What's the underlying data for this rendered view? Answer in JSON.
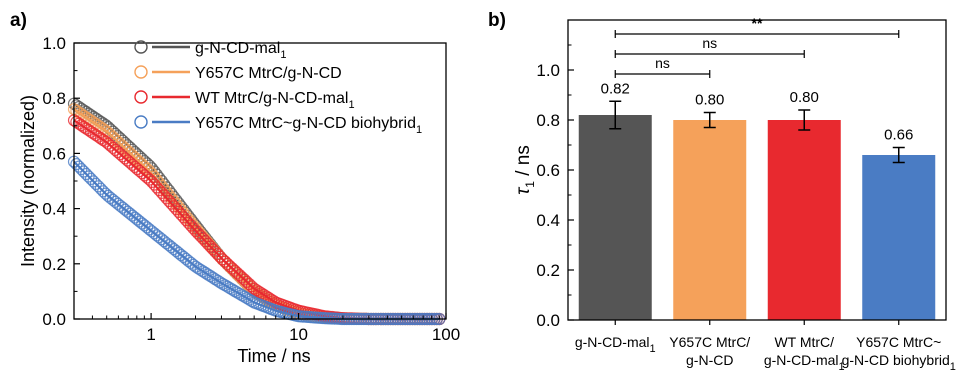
{
  "panels": [
    {
      "letter": "a)"
    },
    {
      "letter": "b)"
    }
  ],
  "chart_data": [
    {
      "type": "scatter",
      "panel": "a)",
      "xlabel": "Time / ns",
      "ylabel": "Intensity (normalized)",
      "xscale": "log",
      "xlim": [
        0.3,
        100
      ],
      "ylim": [
        0.0,
        1.0
      ],
      "xticks": [
        {
          "value": 1,
          "label": "1"
        },
        {
          "value": 10,
          "label": "10"
        },
        {
          "value": 100,
          "label": "100"
        }
      ],
      "yticks": [
        "0.0",
        "0.2",
        "0.4",
        "0.6",
        "0.8",
        "1.0"
      ],
      "legend_position": "top-right",
      "fit_lines": true,
      "series": [
        {
          "name": "g-N-CD-mal",
          "name_sub": "1",
          "color": "#555555",
          "x": [
            0.3,
            0.5,
            1,
            2,
            3,
            5,
            7,
            10,
            15,
            20,
            30,
            50,
            90
          ],
          "y": [
            0.78,
            0.7,
            0.55,
            0.34,
            0.22,
            0.1,
            0.05,
            0.02,
            0.005,
            0.002,
            0.0,
            0.0,
            0.0
          ]
        },
        {
          "name": "Y657C MtrC/g-N-CD",
          "name_sub": "",
          "color": "#f5a15a",
          "x": [
            0.3,
            0.5,
            1,
            2,
            3,
            5,
            7,
            10,
            15,
            20,
            30,
            50,
            90
          ],
          "y": [
            0.76,
            0.68,
            0.53,
            0.33,
            0.22,
            0.1,
            0.05,
            0.02,
            0.005,
            0.002,
            0.0,
            0.0,
            0.0
          ]
        },
        {
          "name": "WT MtrC/g-N-CD-mal",
          "name_sub": "1",
          "color": "#e8292f",
          "x": [
            0.3,
            0.5,
            1,
            2,
            3,
            5,
            7,
            10,
            15,
            20,
            30,
            50,
            90
          ],
          "y": [
            0.72,
            0.64,
            0.5,
            0.32,
            0.22,
            0.11,
            0.06,
            0.03,
            0.01,
            0.003,
            0.0,
            0.0,
            0.0
          ]
        },
        {
          "name": "Y657C MtrC~g-N-CD biohybrid",
          "name_sub": "1",
          "color": "#4a7cc4",
          "x": [
            0.3,
            0.5,
            1,
            2,
            3,
            5,
            7,
            10,
            15,
            20,
            30,
            50,
            90
          ],
          "y": [
            0.57,
            0.45,
            0.32,
            0.19,
            0.13,
            0.06,
            0.03,
            0.01,
            0.003,
            0.0,
            0.0,
            0.0,
            0.0
          ]
        }
      ]
    },
    {
      "type": "bar",
      "panel": "b)",
      "ylabel_main": "τ",
      "ylabel_sub": "1",
      "ylabel_unit": " / ns",
      "ylim": [
        0.0,
        1.2
      ],
      "yticks": [
        "0.0",
        "0.2",
        "0.4",
        "0.6",
        "0.8",
        "1.0"
      ],
      "categories": [
        {
          "lines": [
            "g-N-CD-mal",
            ""
          ],
          "subs": [
            "1",
            ""
          ]
        },
        {
          "lines": [
            "Y657C MtrC/",
            "g-N-CD"
          ],
          "subs": [
            "",
            ""
          ]
        },
        {
          "lines": [
            "WT MtrC/",
            "g-N-CD-mal"
          ],
          "subs": [
            "",
            "1"
          ]
        },
        {
          "lines": [
            "Y657C MtrC~",
            "g-N-CD biohybrid"
          ],
          "subs": [
            "",
            "1"
          ]
        }
      ],
      "values": [
        0.82,
        0.8,
        0.8,
        0.66
      ],
      "value_labels": [
        "0.82",
        "0.80",
        "0.80",
        "0.66"
      ],
      "errors": [
        0.055,
        0.03,
        0.04,
        0.03
      ],
      "colors": [
        "#555555",
        "#f5a15a",
        "#e8292f",
        "#4a7cc4"
      ],
      "significance": [
        {
          "from": 0,
          "to": 1,
          "label": "ns"
        },
        {
          "from": 0,
          "to": 2,
          "label": "ns"
        },
        {
          "from": 0,
          "to": 3,
          "label": "**"
        }
      ]
    }
  ]
}
